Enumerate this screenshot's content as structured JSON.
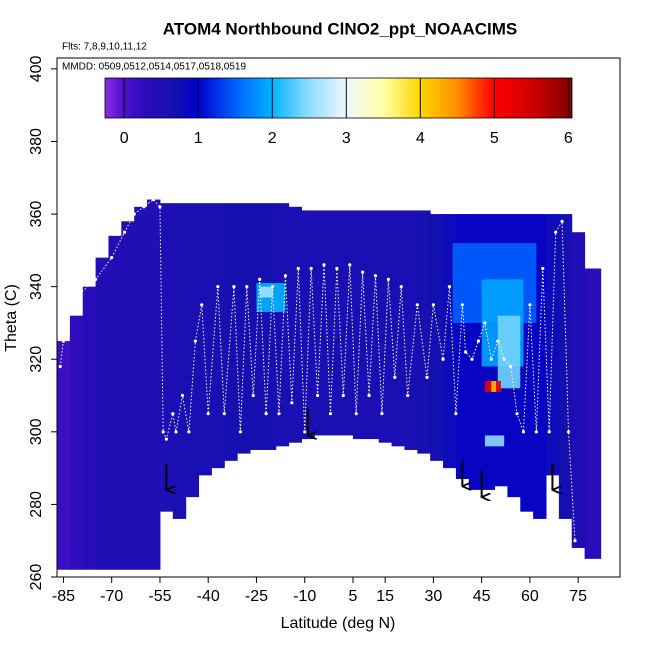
{
  "chart_data": {
    "type": "curtain",
    "title": "ATOM4 Northbound ClNO2_ppt_NOAACIMS",
    "subtitle": "Flts: 7,8,9,10,11,12",
    "annotation": "MMDD: 0509,0512,0514,0517,0518,0519",
    "xlabel": "Latitude (deg N)",
    "ylabel": "Theta (C)",
    "xlim": [
      -87,
      88
    ],
    "ylim": [
      260,
      403
    ],
    "xticks": [
      -85,
      -70,
      -55,
      -40,
      -25,
      -10,
      5,
      15,
      30,
      45,
      60,
      75
    ],
    "yticks": [
      260,
      280,
      300,
      320,
      340,
      360,
      380,
      400
    ],
    "clim": [
      -0.26,
      6.05
    ],
    "cticks": [
      0,
      1,
      2,
      3,
      4,
      5,
      6
    ],
    "colorscale": [
      [
        -0.26,
        "#8a2be2"
      ],
      [
        0,
        "#4b10d0"
      ],
      [
        0.3,
        "#2a0cb8"
      ],
      [
        0.7,
        "#1410b0"
      ],
      [
        1,
        "#0000cd"
      ],
      [
        1.5,
        "#0060ff"
      ],
      [
        2,
        "#00b4ff"
      ],
      [
        2.5,
        "#90dcff"
      ],
      [
        3,
        "#f0f8ff"
      ],
      [
        3.5,
        "#ffffa8"
      ],
      [
        4,
        "#ffd700"
      ],
      [
        4.5,
        "#ff8c00"
      ],
      [
        5,
        "#ff0000"
      ],
      [
        5.5,
        "#d00000"
      ],
      [
        6.05,
        "#800000"
      ]
    ],
    "columns": {
      "lat_edges": [
        -87,
        -83,
        -79,
        -75,
        -71,
        -67,
        -63,
        -59,
        -55,
        -51,
        -47,
        -43,
        -39,
        -35,
        -31,
        -27,
        -23,
        -19,
        -15,
        -11,
        -7,
        -3,
        1,
        5,
        9,
        13,
        17,
        21,
        25,
        29,
        33,
        37,
        41,
        45,
        49,
        53,
        57,
        61,
        65,
        69,
        73,
        77,
        82
      ],
      "theta_bottom": [
        262,
        262,
        262,
        262,
        262,
        262,
        262,
        262,
        278,
        276,
        282,
        288,
        290,
        292,
        294,
        295,
        295,
        296,
        297,
        298,
        299,
        299,
        299,
        298,
        298,
        297,
        296,
        295,
        294,
        292,
        290,
        287,
        284,
        284,
        285,
        282,
        278,
        276,
        288,
        276,
        268,
        265
      ],
      "theta_top": [
        325,
        332,
        340,
        348,
        354,
        358,
        362,
        364,
        363,
        363,
        363,
        363,
        363,
        363,
        363,
        363,
        363,
        363,
        362,
        361,
        361,
        361,
        361,
        361,
        361,
        361,
        361,
        361,
        361,
        360,
        360,
        360,
        360,
        360,
        360,
        360,
        360,
        360,
        360,
        360,
        355,
        345
      ],
      "value": [
        0.15,
        0.25,
        0.35,
        0.45,
        0.45,
        0.45,
        0.45,
        0.45,
        0.55,
        0.6,
        0.6,
        0.6,
        0.6,
        0.65,
        0.65,
        0.65,
        0.65,
        0.6,
        0.6,
        0.6,
        0.6,
        0.6,
        0.6,
        0.6,
        0.6,
        0.6,
        0.6,
        0.6,
        0.65,
        0.7,
        0.8,
        0.9,
        0.9,
        0.9,
        0.9,
        0.9,
        0.9,
        0.9,
        0.8,
        0.7,
        0.5,
        0.3
      ]
    },
    "patches": [
      {
        "lat0": -25,
        "lat1": -16,
        "theta0": 333,
        "theta1": 341,
        "value": 2.0
      },
      {
        "lat0": -24,
        "lat1": -20,
        "theta0": 337,
        "theta1": 340,
        "value": 2.6
      },
      {
        "lat0": 36,
        "lat1": 62,
        "theta0": 330,
        "theta1": 352,
        "value": 1.5
      },
      {
        "lat0": 45,
        "lat1": 58,
        "theta0": 318,
        "theta1": 342,
        "value": 1.9
      },
      {
        "lat0": 50,
        "lat1": 57,
        "theta0": 312,
        "theta1": 332,
        "value": 2.4
      },
      {
        "lat0": 46,
        "lat1": 51,
        "theta0": 311,
        "theta1": 314,
        "value": 5.2
      },
      {
        "lat0": 48,
        "lat1": 49.5,
        "theta0": 311,
        "theta1": 314,
        "value": 4.2
      },
      {
        "lat0": 46,
        "lat1": 52,
        "theta0": 296,
        "theta1": 299,
        "value": 2.5
      }
    ],
    "track": {
      "lat": [
        -86,
        -85,
        -84,
        -83,
        -80,
        -75,
        -70,
        -66,
        -63,
        -60,
        -57,
        -55,
        -54,
        -53,
        -51,
        -50,
        -48,
        -46,
        -44,
        -42,
        -40,
        -37,
        -35,
        -32,
        -30,
        -28,
        -26,
        -24,
        -22,
        -20,
        -18,
        -16,
        -14,
        -12,
        -10,
        -8,
        -6,
        -4,
        -2,
        0,
        2,
        4,
        6,
        8,
        10,
        12,
        14,
        16,
        18,
        20,
        22,
        25,
        28,
        30,
        33,
        35,
        37,
        39,
        40,
        42,
        44,
        46,
        48,
        50,
        52,
        54,
        56,
        58,
        60,
        62,
        64,
        66,
        68,
        70,
        72,
        74
      ],
      "theta": [
        318,
        325,
        330,
        335,
        338,
        342,
        348,
        355,
        360,
        362,
        364,
        362,
        300,
        298,
        305,
        300,
        310,
        300,
        325,
        335,
        305,
        340,
        305,
        340,
        300,
        340,
        310,
        342,
        305,
        340,
        305,
        343,
        308,
        345,
        300,
        345,
        310,
        346,
        305,
        345,
        310,
        346,
        305,
        344,
        310,
        343,
        305,
        342,
        315,
        340,
        310,
        335,
        315,
        335,
        320,
        340,
        305,
        335,
        322,
        320,
        325,
        330,
        320,
        325,
        320,
        318,
        305,
        300,
        335,
        300,
        345,
        300,
        355,
        358,
        300,
        270
      ]
    },
    "arrows": {
      "lat": [
        -53,
        -9,
        39,
        45,
        67
      ],
      "theta": [
        284,
        299,
        285,
        282,
        284
      ]
    }
  }
}
